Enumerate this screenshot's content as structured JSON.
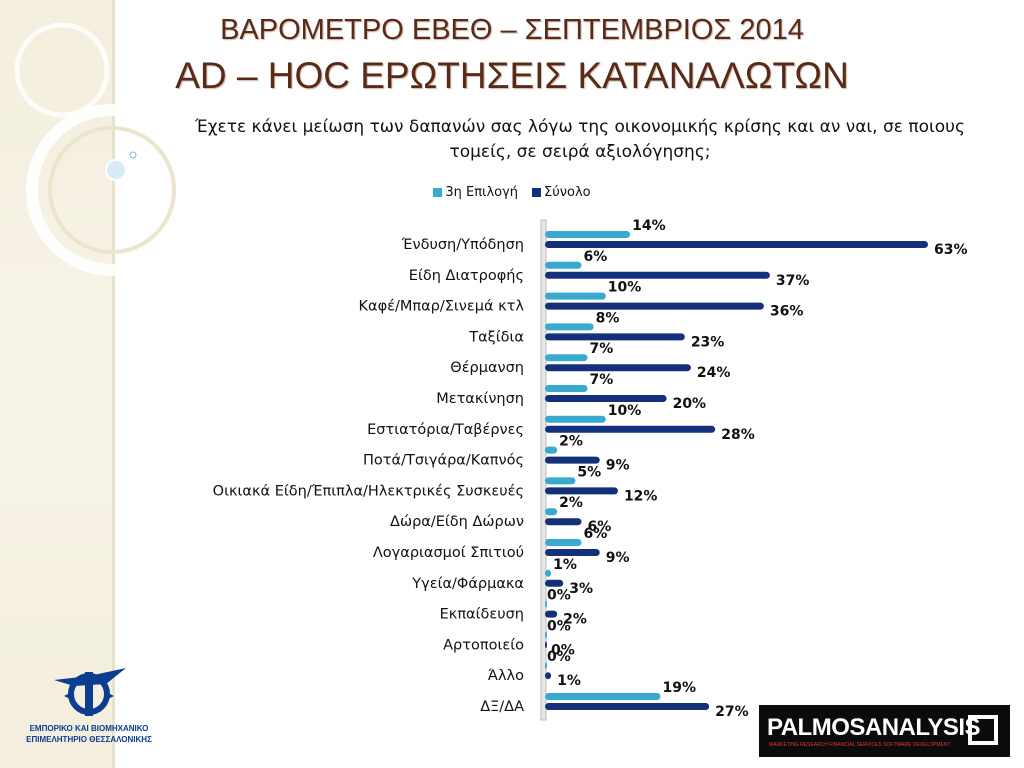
{
  "title_line1": "ΒΑΡΟΜΕΤΡΟ ΕΒΕΘ – ΣΕΠΤΕΜΒΡΙΟΣ 2014",
  "title_line2": "AD – HOC ΕΡΩΤΗΣΕΙΣ ΚΑΤΑΝΑΛΩΤΩΝ",
  "question": "Έχετε κάνει μείωση των δαπανών σας λόγω της οικονομικής κρίσης και αν ναι, σε ποιους τομείς, σε σειρά αξιολόγησης;",
  "logos": {
    "chamber_line1": "ΕΜΠΟΡΙΚΟ ΚΑΙ ΒΙΟΜΗΧΑΝΙΚΟ",
    "chamber_line2": "ΕΠΙΜΕΛΗΤΗΡΙΟ ΘΕΣΣΑΛΟΝΙΚΗΣ",
    "palmos_brand": "PALMOSANALYSIS",
    "palmos_tagline": "MARKETING RESEARCH  FINANCIAL SERVICES  SOFTWARE DEVELOPMENT"
  },
  "colors": {
    "series_3rd": "#3aa9cf",
    "series_total": "#14307a",
    "title": "#5a2a18",
    "chamber_blue": "#0b3d91"
  },
  "chart_data": {
    "type": "bar",
    "orientation": "horizontal",
    "legend_position": "top",
    "grid": false,
    "xlim": [
      0,
      63
    ],
    "categories": [
      "Ένδυση/Υπόδηση",
      "Είδη Διατροφής",
      "Καφέ/Μπαρ/Σινεμά κτλ",
      "Ταξίδια",
      "Θέρμανση",
      "Μετακίνηση",
      "Εστιατόρια/Ταβέρνες",
      "Ποτά/Τσιγάρα/Καπνός",
      "Οικιακά Είδη/Έπιπλα/Ηλεκτρικές Συσκευές",
      "Δώρα/Είδη Δώρων",
      "Λογαριασμοί Σπιτιού",
      "Υγεία/Φάρμακα",
      "Εκπαίδευση",
      "Αρτοποιείο",
      "Άλλο",
      "ΔΞ/ΔΑ"
    ],
    "series": [
      {
        "name": "3η Επιλογή",
        "values": [
          14,
          6,
          10,
          8,
          7,
          7,
          10,
          2,
          5,
          2,
          6,
          1,
          0,
          0,
          0,
          19
        ],
        "labels": [
          "14%",
          "6%",
          "10%",
          "8%",
          "7%",
          "7%",
          "10%",
          "2%",
          "5%",
          "2%",
          "6%",
          "1%",
          "0%",
          "0%",
          "0%",
          "19%"
        ]
      },
      {
        "name": "Σύνολο",
        "values": [
          63,
          37,
          36,
          23,
          24,
          20,
          28,
          9,
          12,
          6,
          9,
          3,
          2,
          0,
          1,
          27
        ],
        "labels": [
          "63%",
          "37%",
          "36%",
          "23%",
          "24%",
          "20%",
          "28%",
          "9%",
          "12%",
          "6%",
          "9%",
          "3%",
          "2%",
          "0%",
          "1%",
          "27%"
        ]
      }
    ]
  }
}
